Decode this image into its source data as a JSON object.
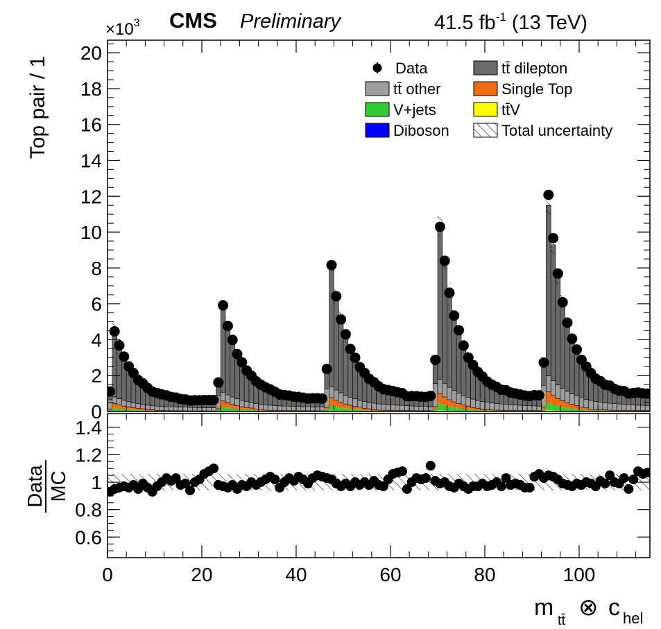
{
  "header": {
    "cms": "CMS",
    "preliminary": "Preliminary",
    "lumi_value": "41.5 fb",
    "lumi_exp": "-1",
    "energy": " (13 TeV)",
    "multiplier_base": "×10",
    "multiplier_exp": "3"
  },
  "legend": {
    "data": "Data",
    "tt_dilepton": "tt̄ dilepton",
    "tt_other": "tt̄ other",
    "single_top": "Single Top",
    "vjets": "V+jets",
    "ttv": "tt̄V",
    "diboson": "Diboson",
    "total_unc": "Total uncertainty"
  },
  "colors": {
    "tt_dilepton": "#6a6a6a",
    "tt_other": "#9e9e9e",
    "single_top": "#f26a10",
    "vjets": "#33cc33",
    "ttv": "#ffff00",
    "diboson": "#0000ff",
    "data": "#000000"
  },
  "axes": {
    "y_top_label": "Top pair / 1",
    "y_bottom_label_num": "Data",
    "y_bottom_label_den": "MC",
    "x_label_main": "m",
    "x_label_sub": "tt̄",
    "x_label_otimes": "⊗",
    "x_label_c": "c",
    "x_label_csub": "hel"
  },
  "chart_data": {
    "type": "bar",
    "title": "CMS Preliminary",
    "subtitle": "41.5 fb^-1 (13 TeV)",
    "xlabel": "m_tt̄ ⊗ c_hel",
    "ylabel": "Top pair / 1",
    "xlim": [
      0,
      115
    ],
    "ylim": [
      0,
      20.7
    ],
    "y_unit_multiplier": "×10^3",
    "ratio_ylim": [
      0.45,
      1.5
    ],
    "ratio_ylabel": "Data/MC",
    "x_ticks": [
      "0",
      "20",
      "40",
      "60",
      "80",
      "100"
    ],
    "y_ticks": [
      "0",
      "2",
      "4",
      "6",
      "8",
      "10",
      "12",
      "14",
      "16",
      "18",
      "20"
    ],
    "ratio_y_ticks": [
      "0.6",
      "0.8",
      "1",
      "1.2",
      "1.4"
    ],
    "mass_blocks": [
      {
        "start": 0,
        "peak": 4.7,
        "pre": 1.2,
        "tail": 0.55
      },
      {
        "start": 23,
        "peak": 6.1,
        "pre": 1.65,
        "tail": 0.65
      },
      {
        "start": 46,
        "peak": 8.0,
        "pre": 2.3,
        "tail": 0.72
      },
      {
        "start": 69,
        "peak": 10.4,
        "pre": 2.85,
        "tail": 0.78
      },
      {
        "start": 92,
        "peak": 11.5,
        "pre": 2.65,
        "tail": 0.85
      }
    ],
    "series": [
      {
        "name": "tt̄ dilepton"
      },
      {
        "name": "tt̄ other"
      },
      {
        "name": "Single Top"
      },
      {
        "name": "V+jets"
      },
      {
        "name": "tt̄V"
      },
      {
        "name": "Diboson"
      },
      {
        "name": "Data"
      }
    ],
    "ratio_values": [
      0.93,
      0.95,
      0.96,
      0.97,
      0.96,
      0.98,
      0.95,
      0.99,
      0.96,
      0.93,
      0.97,
      1.0,
      1.03,
      1.01,
      1.03,
      0.98,
      0.99,
      0.94,
      1.0,
      1.02,
      1.06,
      1.08,
      1.1,
      0.98,
      0.97,
      0.96,
      0.98,
      0.95,
      0.98,
      0.97,
      1.0,
      0.98,
      1.0,
      1.02,
      1.04,
      1.02,
      0.96,
      1.0,
      1.03,
      1.01,
      1.04,
      1.02,
      0.99,
      1.03,
      1.05,
      1.04,
      1.03,
      1.02,
      0.99,
      0.97,
      0.99,
      0.97,
      1.0,
      0.98,
      1.0,
      0.98,
      1.01,
      0.98,
      0.97,
      1.02,
      1.06,
      1.07,
      1.08,
      0.95,
      1.0,
      1.03,
      1.02,
      1.03,
      1.12,
      1.01,
      0.99,
      1.0,
      0.97,
      0.96,
      0.99,
      0.97,
      0.95,
      0.97,
      0.97,
      0.99,
      0.97,
      0.98,
      1.0,
      0.97,
      1.03,
      0.98,
      0.99,
      0.98,
      0.96,
      0.96,
      1.04,
      1.06,
      1.03,
      1.05,
      1.04,
      1.02,
      0.99,
      0.98,
      0.97,
      0.99,
      0.98,
      1.0,
      0.99,
      0.97,
      1.01,
      0.99,
      1.05,
      1.0,
      0.99,
      1.03,
      0.95,
      1.02,
      1.08,
      1.06,
      1.07,
      0.91,
      1.04
    ]
  }
}
